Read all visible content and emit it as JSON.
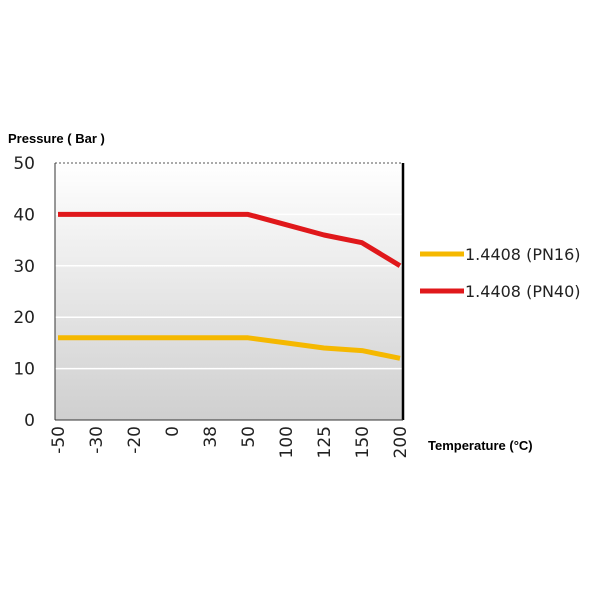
{
  "chart_data": {
    "type": "line",
    "ylabel": "Pressure ( Bar )",
    "xlabel": "Temperature (°C)",
    "x_categories": [
      "-50",
      "-30",
      "-20",
      "0",
      "38",
      "50",
      "100",
      "125",
      "150",
      "200"
    ],
    "yticks": [
      "0",
      "10",
      "20",
      "30",
      "40",
      "50"
    ],
    "ylim": [
      0,
      50
    ],
    "grid": true,
    "legend_position": "right",
    "series": [
      {
        "name": "1.4408 (PN16)",
        "color": "#f5b800",
        "values": [
          16,
          16,
          16,
          16,
          16,
          16,
          15,
          14,
          13.5,
          12
        ]
      },
      {
        "name": "1.4408 (PN40)",
        "color": "#e0181b",
        "values": [
          40,
          40,
          40,
          40,
          40,
          40,
          38,
          36,
          34.5,
          30
        ]
      }
    ]
  }
}
